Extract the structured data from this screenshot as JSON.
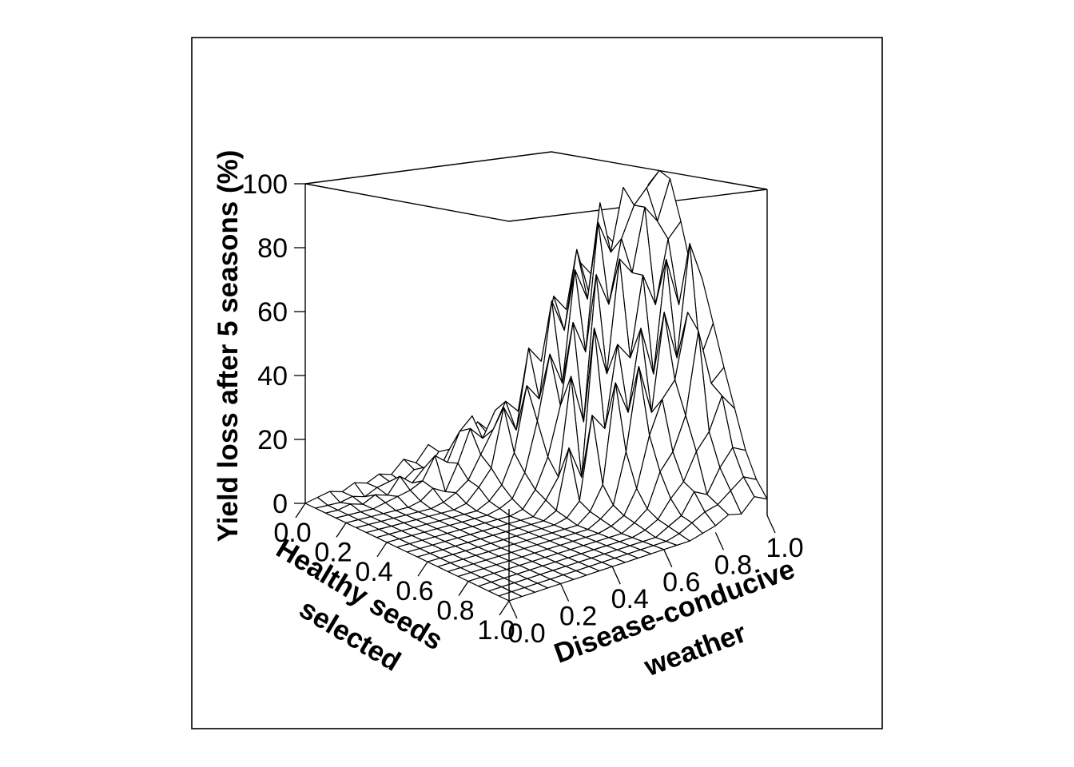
{
  "chart_data": {
    "type": "surface",
    "x_axis": {
      "label_line1": "Healthy seeds",
      "label_line2": "selected",
      "range": [
        0.0,
        1.0
      ],
      "ticks": [
        "0.0",
        "0.2",
        "0.4",
        "0.6",
        "0.8",
        "1.0"
      ]
    },
    "y_axis": {
      "label_line1": "Disease-conducive",
      "label_line2": "weather",
      "range": [
        0.0,
        1.0
      ],
      "ticks": [
        "0.0",
        "0.2",
        "0.4",
        "0.6",
        "0.8",
        "1.0"
      ]
    },
    "z_axis": {
      "label": "Yield loss after 5 seasons (%)",
      "range": [
        0,
        100
      ],
      "ticks": [
        "0",
        "20",
        "40",
        "60",
        "80",
        "100"
      ]
    },
    "grid": {
      "x": [
        0.0,
        0.05,
        0.1,
        0.15,
        0.2,
        0.25,
        0.3,
        0.35,
        0.4,
        0.45,
        0.5,
        0.55,
        0.6,
        0.65,
        0.7,
        0.75,
        0.8,
        0.85,
        0.9,
        0.95,
        1.0
      ],
      "y": [
        0.0,
        0.05,
        0.1,
        0.15,
        0.2,
        0.25,
        0.3,
        0.35,
        0.4,
        0.45,
        0.5,
        0.55,
        0.6,
        0.65,
        0.7,
        0.75,
        0.8,
        0.85,
        0.9,
        0.95,
        1.0
      ],
      "z_rows": [
        [
          0,
          1,
          2,
          1,
          3,
          2,
          4,
          3,
          7,
          5,
          10,
          6,
          7,
          8,
          14,
          10,
          12,
          11,
          11,
          9,
          10
        ],
        [
          0,
          0,
          0,
          1,
          0,
          2,
          3,
          2,
          5,
          4,
          9,
          5,
          15,
          9,
          11,
          8,
          14,
          16,
          12,
          14,
          10
        ],
        [
          0,
          0,
          1,
          0,
          2,
          1,
          6,
          3,
          7,
          4,
          11,
          7,
          7,
          12,
          16,
          18,
          13,
          20,
          14,
          15,
          18
        ],
        [
          0,
          0,
          0,
          0,
          1,
          2,
          3,
          5,
          12,
          9,
          18,
          22,
          12,
          18,
          17,
          16,
          19,
          18,
          17,
          25,
          23
        ],
        [
          0,
          0,
          0,
          0,
          0,
          0,
          1,
          4,
          2,
          10,
          20,
          16,
          24,
          16,
          20,
          35,
          28,
          50,
          22,
          30,
          28
        ],
        [
          0,
          0,
          0,
          0,
          0,
          0,
          0,
          1,
          3,
          6,
          13,
          20,
          28,
          24,
          31,
          35,
          50,
          28,
          65,
          38,
          40
        ],
        [
          0,
          0,
          0,
          0,
          0,
          0,
          0,
          0,
          1,
          5,
          10,
          28,
          20,
          45,
          40,
          60,
          55,
          70,
          65,
          58,
          60
        ],
        [
          0,
          0,
          0,
          0,
          0,
          0,
          0,
          0,
          0,
          2,
          6,
          15,
          35,
          30,
          60,
          50,
          75,
          60,
          80,
          75,
          85
        ],
        [
          0,
          0,
          0,
          0,
          0,
          0,
          0,
          0,
          0,
          1,
          3,
          10,
          25,
          45,
          35,
          70,
          60,
          90,
          70,
          85,
          80
        ],
        [
          0,
          0,
          0,
          0,
          0,
          0,
          0,
          0,
          0,
          0,
          1,
          6,
          15,
          30,
          55,
          45,
          85,
          75,
          95,
          80,
          95
        ],
        [
          0,
          0,
          0,
          0,
          0,
          0,
          0,
          0,
          0,
          0,
          0,
          4,
          10,
          40,
          25,
          70,
          60,
          80,
          90,
          95,
          100
        ],
        [
          0,
          0,
          0,
          0,
          0,
          0,
          0,
          0,
          0,
          0,
          0,
          2,
          20,
          10,
          55,
          40,
          75,
          70,
          90,
          85,
          98
        ],
        [
          0,
          0,
          0,
          0,
          0,
          0,
          0,
          0,
          0,
          0,
          0,
          1,
          5,
          30,
          25,
          50,
          45,
          70,
          60,
          80,
          85
        ],
        [
          0,
          0,
          0,
          0,
          0,
          0,
          0,
          0,
          0,
          0,
          0,
          0,
          3,
          10,
          40,
          30,
          55,
          40,
          75,
          60,
          70
        ],
        [
          0,
          0,
          0,
          0,
          0,
          0,
          0,
          0,
          0,
          0,
          0,
          0,
          2,
          5,
          20,
          45,
          30,
          60,
          45,
          80,
          68
        ],
        [
          0,
          0,
          0,
          0,
          0,
          0,
          0,
          0,
          0,
          0,
          0,
          0,
          1,
          3,
          10,
          25,
          35,
          40,
          60,
          45,
          55
        ],
        [
          0,
          0,
          0,
          0,
          0,
          0,
          0,
          0,
          0,
          0,
          0,
          0,
          0,
          2,
          5,
          15,
          20,
          30,
          55,
          38,
          42
        ],
        [
          0,
          0,
          0,
          0,
          0,
          0,
          0,
          0,
          0,
          0,
          0,
          0,
          0,
          1,
          3,
          8,
          12,
          20,
          25,
          35,
          30
        ],
        [
          0,
          0,
          0,
          0,
          0,
          0,
          0,
          0,
          0,
          0,
          0,
          0,
          0,
          0,
          2,
          4,
          10,
          8,
          15,
          20,
          18
        ],
        [
          0,
          0,
          0,
          0,
          0,
          0,
          0,
          0,
          0,
          0,
          0,
          0,
          0,
          0,
          1,
          3,
          5,
          6,
          9,
          12,
          10
        ],
        [
          0,
          0,
          0,
          0,
          0,
          0,
          0,
          0,
          0,
          0,
          0,
          0,
          0,
          0,
          0,
          1,
          2,
          4,
          3,
          7,
          5
        ]
      ]
    }
  }
}
